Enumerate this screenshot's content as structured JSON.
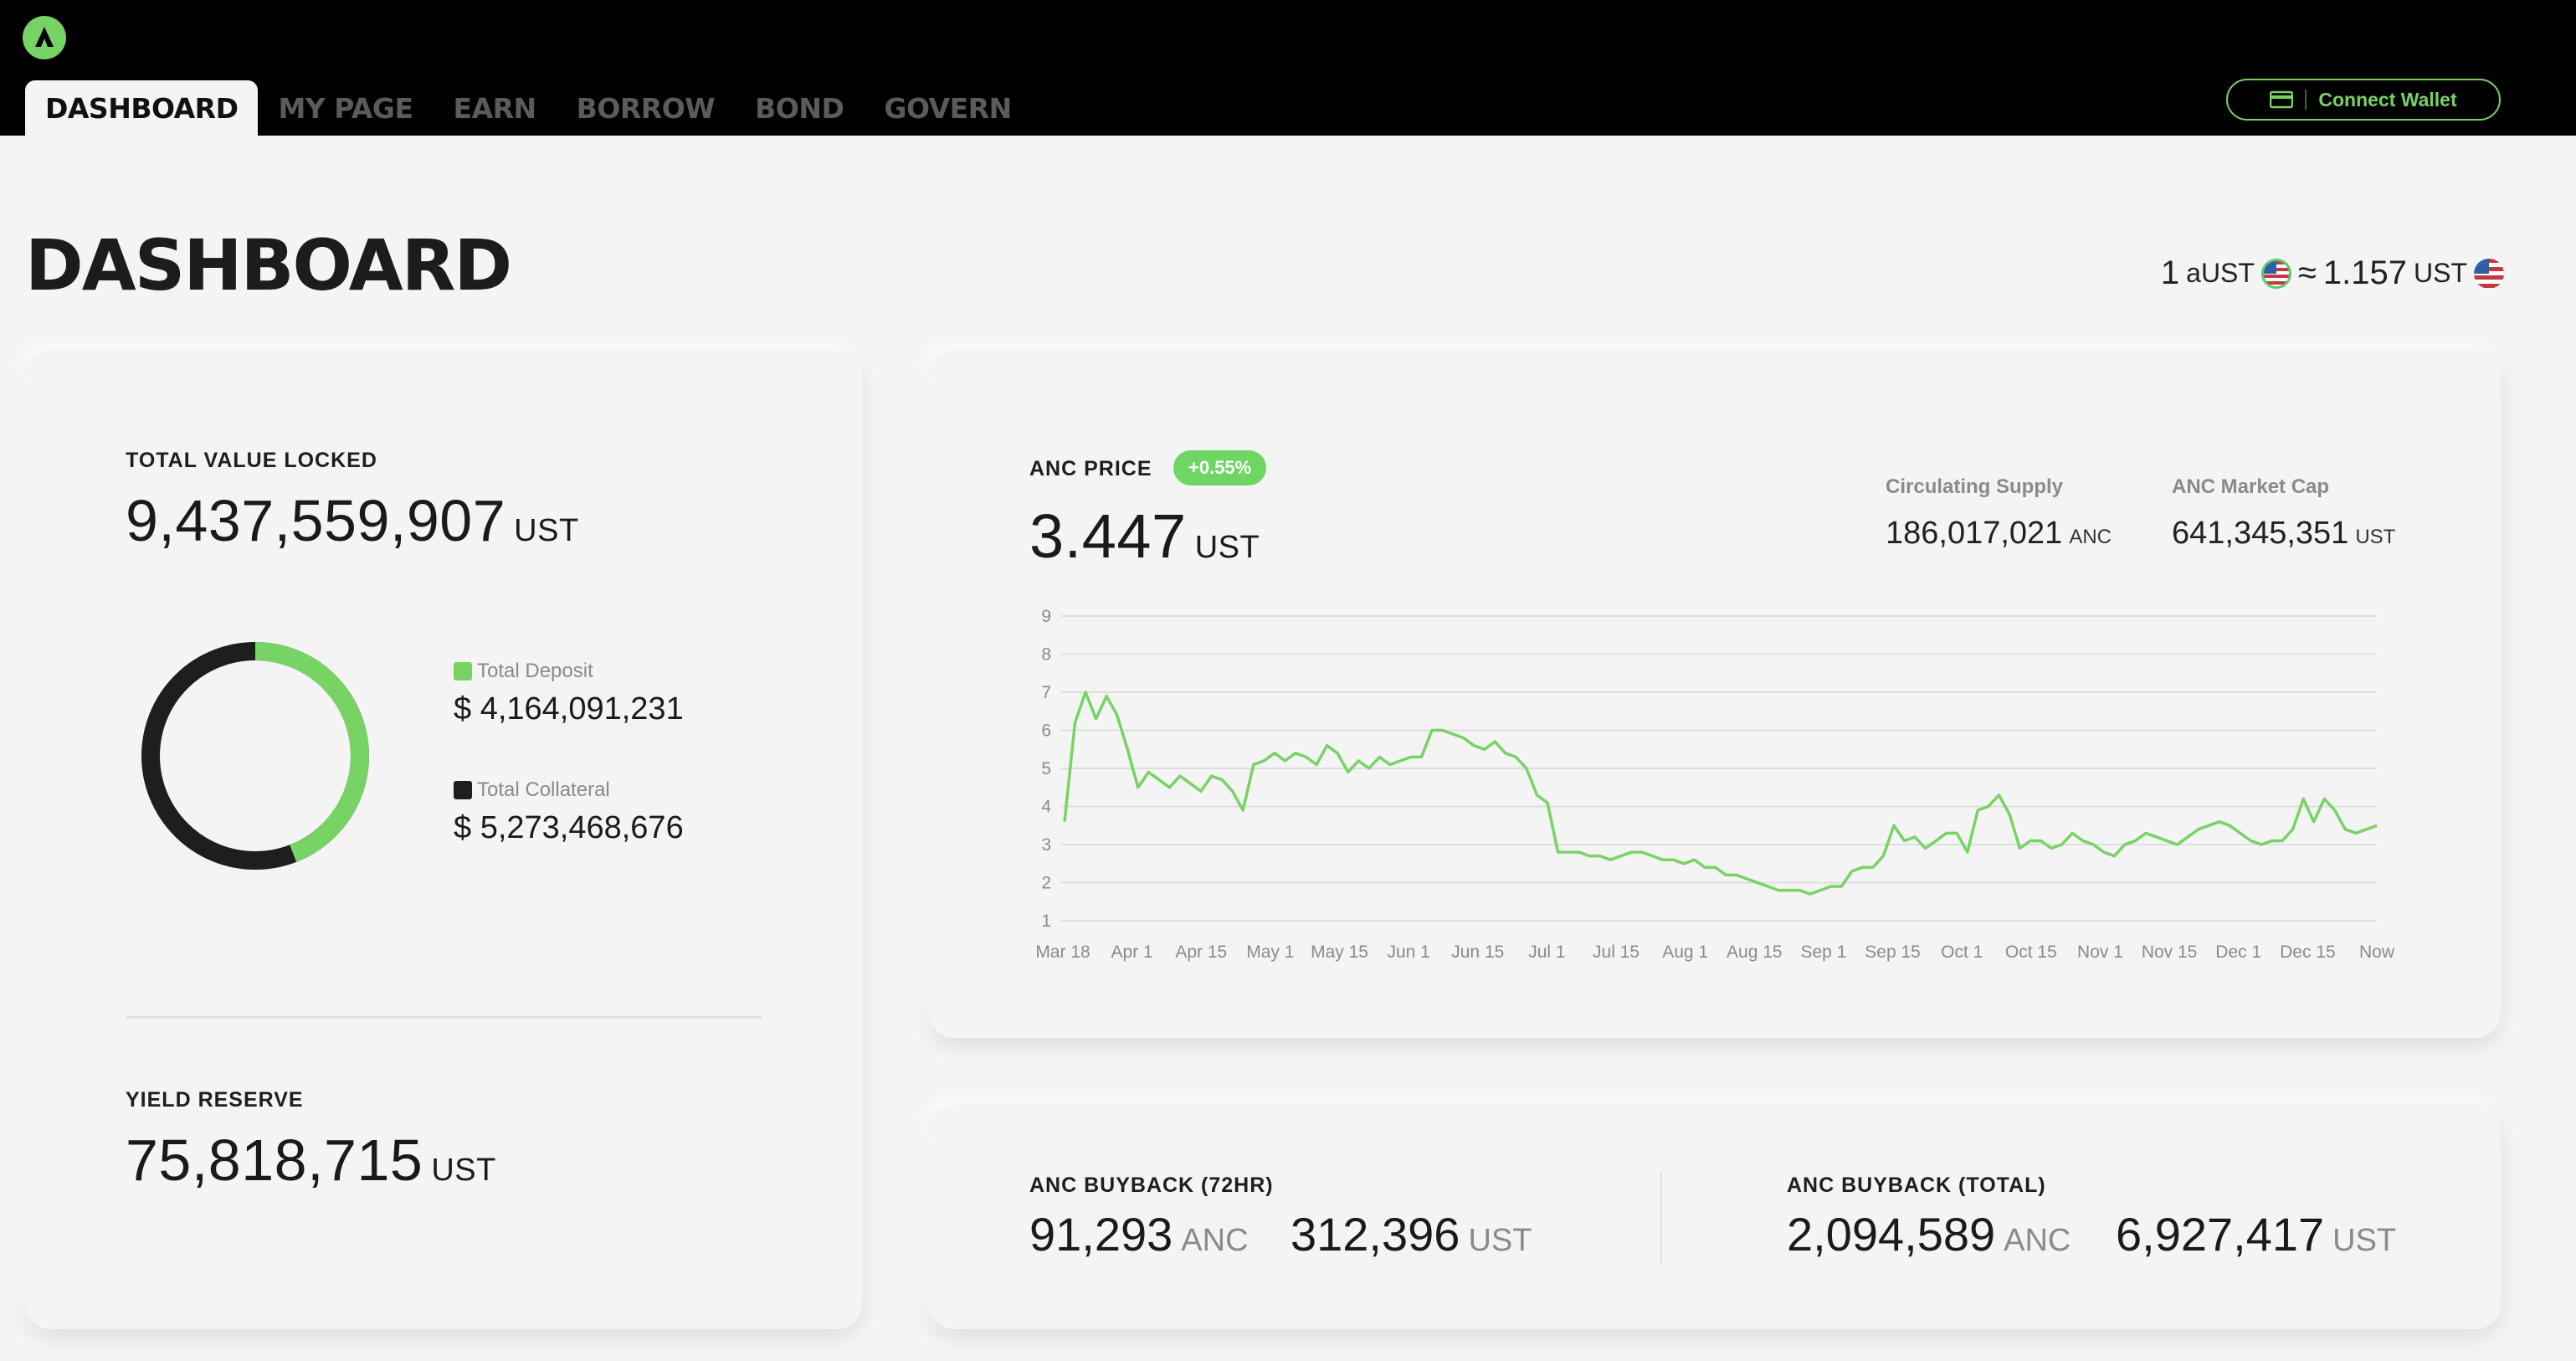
{
  "nav": {
    "tabs": [
      "DASHBOARD",
      "MY PAGE",
      "EARN",
      "BORROW",
      "BOND",
      "GOVERN"
    ],
    "active_tab": "DASHBOARD",
    "connect_wallet": "Connect Wallet"
  },
  "header": {
    "title": "DASHBOARD",
    "rate": {
      "left_amount": "1",
      "left_unit": "aUST",
      "approx": "≈",
      "right_amount": "1.157",
      "right_unit": "UST"
    }
  },
  "tvl": {
    "label": "TOTAL VALUE LOCKED",
    "value": "9,437,559,907",
    "unit": "UST",
    "deposit_label": "Total Deposit",
    "deposit_value": "$ 4,164,091,231",
    "collateral_label": "Total Collateral",
    "collateral_value": "$ 5,273,468,676",
    "deposit_fraction": 0.441,
    "deposit_color": "#78d365",
    "collateral_color": "#1e1e1e"
  },
  "yield_reserve": {
    "label": "YIELD RESERVE",
    "value": "75,818,715",
    "unit": "UST"
  },
  "anc": {
    "label": "ANC PRICE",
    "change": "+0.55%",
    "price": "3.447",
    "unit": "UST",
    "supply_label": "Circulating Supply",
    "supply_value": "186,017,021",
    "supply_unit": "ANC",
    "mcap_label": "ANC Market Cap",
    "mcap_value": "641,345,351",
    "mcap_unit": "UST"
  },
  "buyback": {
    "label_72": "ANC BUYBACK (72HR)",
    "anc_72": "91,293",
    "anc_unit": "ANC",
    "ust_72": "312,396",
    "ust_unit": "UST",
    "label_total": "ANC BUYBACK (TOTAL)",
    "anc_total": "2,094,589",
    "ust_total": "6,927,417"
  },
  "chart_data": {
    "type": "line",
    "ylim": [
      1,
      9
    ],
    "yticks": [
      1,
      2,
      3,
      4,
      5,
      6,
      7,
      8,
      9
    ],
    "xticks": [
      "Mar 18",
      "Apr 1",
      "Apr 15",
      "May 1",
      "May 15",
      "Jun 1",
      "Jun 15",
      "Jul 1",
      "Jul 15",
      "Aug 1",
      "Aug 15",
      "Sep 1",
      "Sep 15",
      "Oct 1",
      "Oct 15",
      "Nov 1",
      "Nov 15",
      "Dec 1",
      "Dec 15",
      "Now"
    ],
    "line_color": "#78d365",
    "grid": true,
    "series": [
      {
        "values": [
          3.6,
          6.2,
          7.0,
          6.3,
          6.9,
          6.4,
          5.5,
          4.5,
          4.9,
          4.7,
          4.5,
          4.8,
          4.6,
          4.4,
          4.8,
          4.7,
          4.4,
          3.9,
          5.1,
          5.2,
          5.4,
          5.2,
          5.4,
          5.3,
          5.1,
          5.6,
          5.4,
          4.9,
          5.2,
          5.0,
          5.3,
          5.1,
          5.2,
          5.3,
          5.3,
          6.0,
          6.0,
          5.9,
          5.8,
          5.6,
          5.5,
          5.7,
          5.4,
          5.3,
          5.0,
          4.3,
          4.1,
          2.8,
          2.8,
          2.8,
          2.7,
          2.7,
          2.6,
          2.7,
          2.8,
          2.8,
          2.7,
          2.6,
          2.6,
          2.5,
          2.6,
          2.4,
          2.4,
          2.2,
          2.2,
          2.1,
          2.0,
          1.9,
          1.8,
          1.8,
          1.8,
          1.7,
          1.8,
          1.9,
          1.9,
          2.3,
          2.4,
          2.4,
          2.7,
          3.5,
          3.1,
          3.2,
          2.9,
          3.1,
          3.3,
          3.3,
          2.8,
          3.9,
          4.0,
          4.3,
          3.8,
          2.9,
          3.1,
          3.1,
          2.9,
          3.0,
          3.3,
          3.1,
          3.0,
          2.8,
          2.7,
          3.0,
          3.1,
          3.3,
          3.2,
          3.1,
          3.0,
          3.2,
          3.4,
          3.5,
          3.6,
          3.5,
          3.3,
          3.1,
          3.0,
          3.1,
          3.1,
          3.4,
          4.2,
          3.6,
          4.2,
          3.9,
          3.4,
          3.3,
          3.4,
          3.5
        ]
      }
    ]
  }
}
